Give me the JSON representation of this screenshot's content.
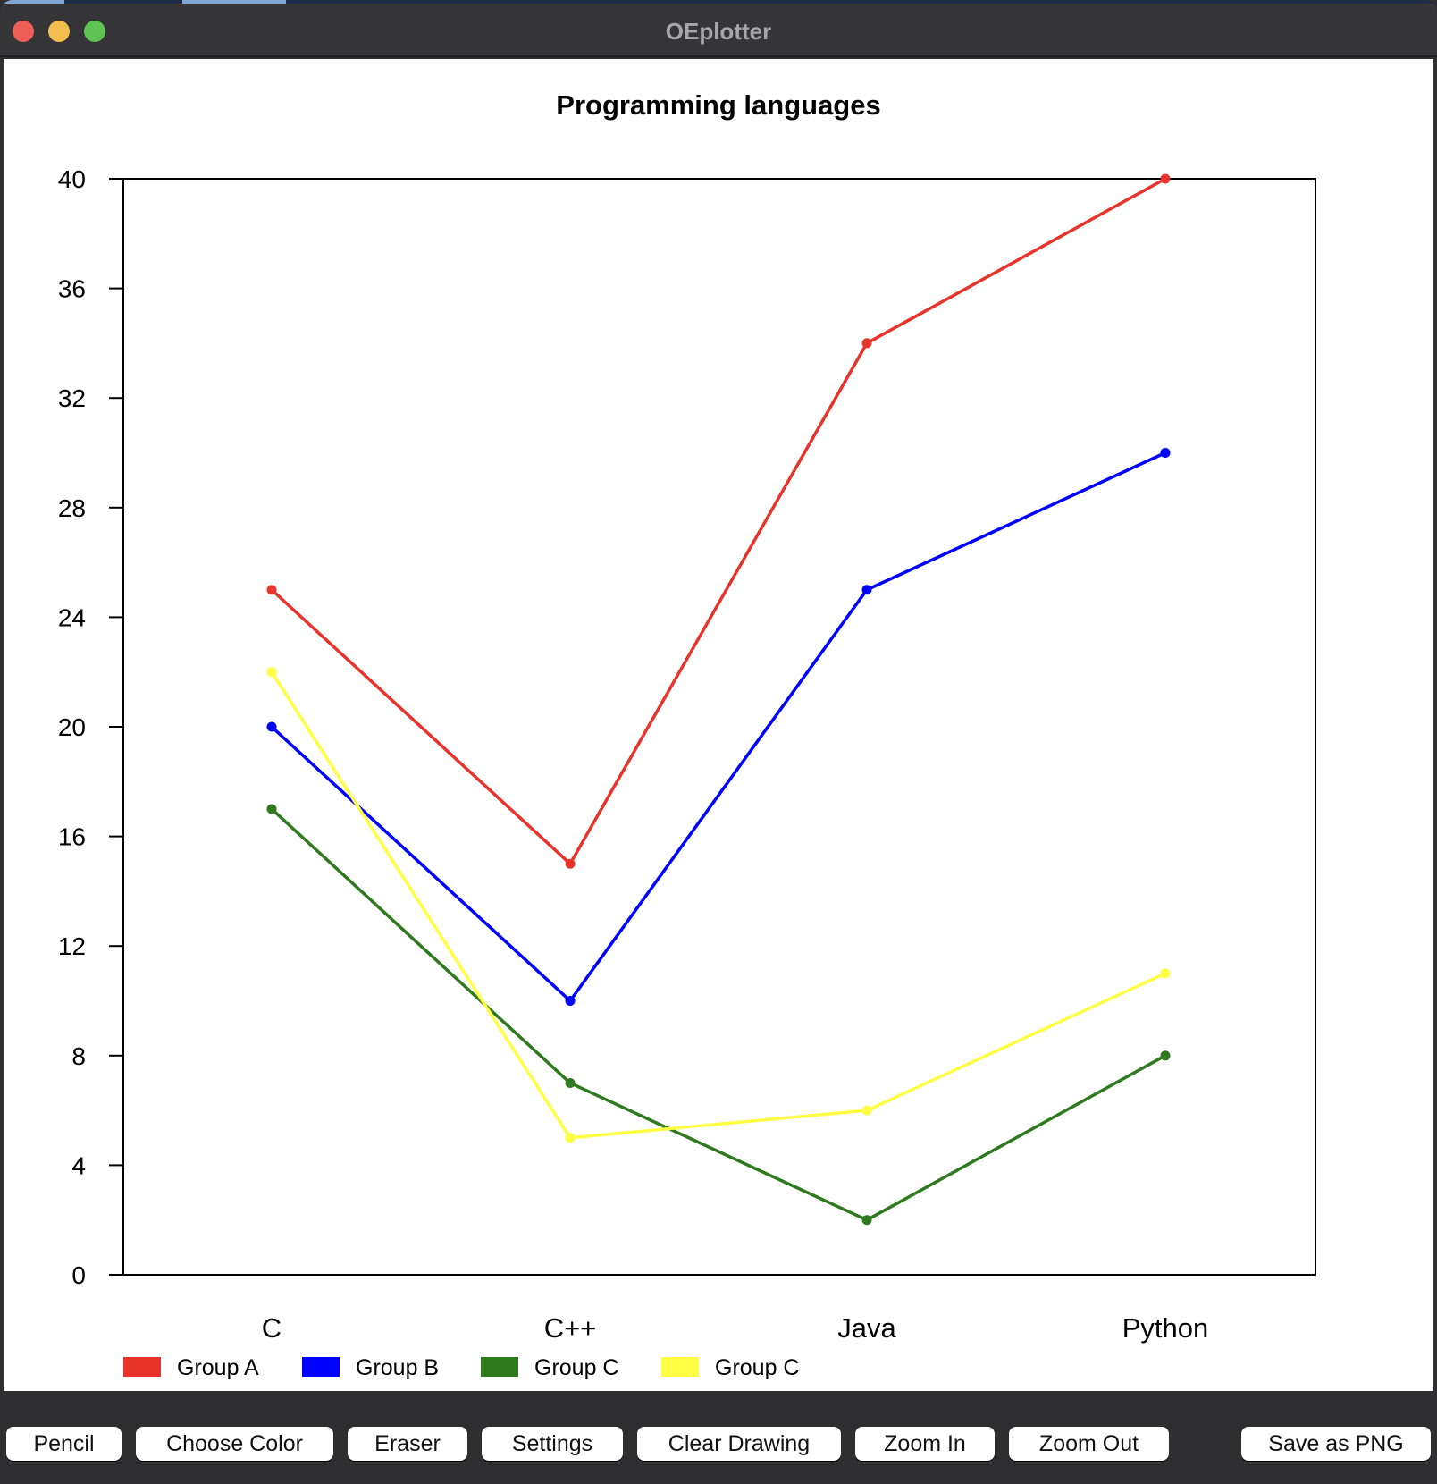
{
  "window": {
    "title": "OEplotter"
  },
  "chart_data": {
    "type": "line",
    "title": "Programming languages",
    "categories": [
      "C",
      "C++",
      "Java",
      "Python"
    ],
    "ylim": [
      0,
      40
    ],
    "yticks": [
      0,
      4,
      8,
      12,
      16,
      20,
      24,
      28,
      32,
      36,
      40
    ],
    "series": [
      {
        "name": "Group A",
        "color": "#e8332a",
        "values": [
          25,
          15,
          34,
          40
        ]
      },
      {
        "name": "Group B",
        "color": "#0000ff",
        "values": [
          20,
          10,
          25,
          30
        ]
      },
      {
        "name": "Group C",
        "color": "#2f7a1f",
        "values": [
          17,
          7,
          2,
          8
        ]
      },
      {
        "name": "Group C",
        "color": "#ffff44",
        "values": [
          22,
          5,
          6,
          11
        ]
      }
    ],
    "legend_position": "bottom-left",
    "grid": false
  },
  "toolbar": {
    "pencil": "Pencil",
    "choose_color": "Choose Color",
    "eraser": "Eraser",
    "settings": "Settings",
    "clear_drawing": "Clear Drawing",
    "zoom_in": "Zoom In",
    "zoom_out": "Zoom Out",
    "save_png": "Save as PNG"
  }
}
